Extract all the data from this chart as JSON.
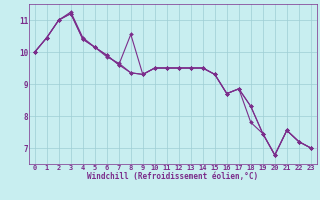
{
  "xlabel": "Windchill (Refroidissement éolien,°C)",
  "bg_color": "#c8eef0",
  "line_color": "#7b2d8b",
  "grid_color": "#9ecdd4",
  "xlim": [
    -0.5,
    23.5
  ],
  "ylim": [
    6.5,
    11.5
  ],
  "yticks": [
    7,
    8,
    9,
    10,
    11
  ],
  "xticks": [
    0,
    1,
    2,
    3,
    4,
    5,
    6,
    7,
    8,
    9,
    10,
    11,
    12,
    13,
    14,
    15,
    16,
    17,
    18,
    19,
    20,
    21,
    22,
    23
  ],
  "series": [
    [
      10.0,
      10.45,
      11.0,
      11.2,
      10.4,
      10.15,
      9.9,
      9.6,
      10.55,
      9.3,
      9.5,
      9.5,
      9.5,
      9.5,
      9.5,
      9.3,
      8.7,
      8.85,
      8.3,
      7.45,
      6.78,
      7.55,
      7.2,
      7.0
    ],
    [
      10.0,
      10.45,
      11.0,
      11.25,
      10.45,
      10.15,
      9.85,
      9.65,
      9.35,
      9.3,
      9.5,
      9.5,
      9.5,
      9.5,
      9.5,
      9.3,
      8.7,
      8.85,
      7.8,
      7.45,
      6.78,
      7.55,
      7.2,
      7.0
    ],
    [
      10.0,
      10.45,
      11.0,
      11.2,
      10.4,
      10.15,
      9.9,
      9.6,
      9.35,
      9.3,
      9.5,
      9.5,
      9.5,
      9.5,
      9.5,
      9.3,
      8.7,
      8.85,
      8.3,
      7.45,
      6.78,
      7.55,
      7.2,
      7.0
    ]
  ],
  "markersize": 2.0,
  "linewidth": 0.8,
  "tick_fontsize": 5.0,
  "label_fontsize": 5.5
}
